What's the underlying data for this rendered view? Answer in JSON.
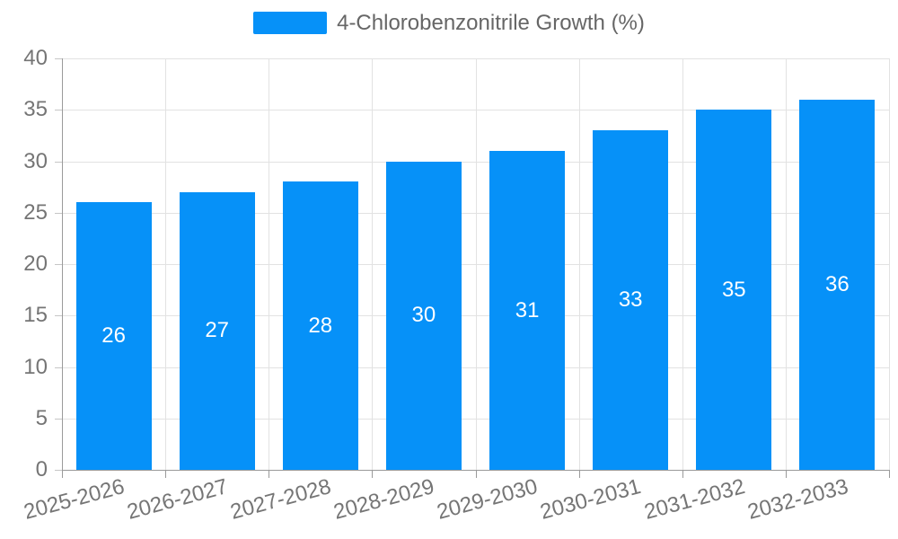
{
  "legend": {
    "label": "4-Chlorobenzonitrile Growth (%)"
  },
  "chart_data": {
    "type": "bar",
    "title": "4-Chlorobenzonitrile Growth (%)",
    "categories": [
      "2025-2026",
      "2026-2027",
      "2027-2028",
      "2028-2029",
      "2029-2030",
      "2030-2031",
      "2031-2032",
      "2032-2033"
    ],
    "values": [
      26,
      27,
      28,
      30,
      31,
      33,
      35,
      36
    ],
    "xlabel": "",
    "ylabel": "",
    "ylim": [
      0,
      40
    ],
    "ytick_step": 5,
    "yticks": [
      0,
      5,
      10,
      15,
      20,
      25,
      30,
      35,
      40
    ],
    "grid": true,
    "legend_position": "top-center",
    "value_label_position": "inside-center",
    "x_label_rotation_deg": -15
  },
  "colors": {
    "bar": "#0691F8",
    "bar_label": "#ffffff",
    "grid_line": "#e2e2e2",
    "axis_line": "#9a9a9a",
    "y_tick": "#c6c6c6",
    "x_tick": "#9a9a9a",
    "axis_label": "#757575",
    "legend_text": "#666666",
    "background": "#ffffff"
  }
}
